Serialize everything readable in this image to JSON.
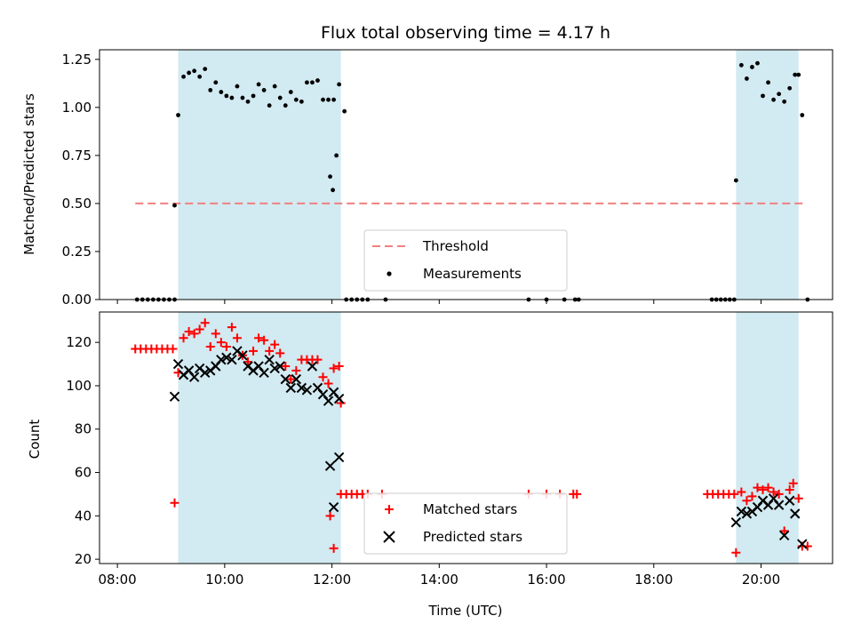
{
  "chart_data": [
    {
      "type": "scatter",
      "title": "Flux total observing time = 4.17 h",
      "ylabel": "Matched/Predicted stars",
      "xlabel": "",
      "xlim": [
        "07:40",
        "21:20"
      ],
      "ylim": [
        0,
        1.3
      ],
      "yticks": [
        "0.00",
        "0.25",
        "0.50",
        "0.75",
        "1.00",
        "1.25"
      ],
      "legend": {
        "placement": "lower-center",
        "entries": [
          "Threshold",
          "Measurements"
        ]
      },
      "highlight_intervals": [
        [
          "09:08",
          "12:10"
        ],
        [
          "19:32",
          "20:42"
        ]
      ],
      "highlight_color": "#add8e6",
      "threshold": {
        "name": "Threshold",
        "y": 0.5,
        "x_range": [
          "08:20",
          "20:50"
        ],
        "color": "#f08080"
      },
      "series": [
        {
          "name": "Measurements",
          "color": "#000000",
          "points": [
            [
              "08:22",
              0
            ],
            [
              "08:28",
              0
            ],
            [
              "08:34",
              0
            ],
            [
              "08:40",
              0
            ],
            [
              "08:46",
              0
            ],
            [
              "08:52",
              0
            ],
            [
              "08:58",
              0
            ],
            [
              "09:04",
              0
            ],
            [
              "09:04",
              0.49
            ],
            [
              "09:08",
              0.96
            ],
            [
              "09:14",
              1.16
            ],
            [
              "09:20",
              1.18
            ],
            [
              "09:26",
              1.19
            ],
            [
              "09:32",
              1.16
            ],
            [
              "09:38",
              1.2
            ],
            [
              "09:44",
              1.09
            ],
            [
              "09:50",
              1.13
            ],
            [
              "09:56",
              1.08
            ],
            [
              "10:02",
              1.06
            ],
            [
              "10:08",
              1.05
            ],
            [
              "10:14",
              1.11
            ],
            [
              "10:20",
              1.05
            ],
            [
              "10:26",
              1.03
            ],
            [
              "10:32",
              1.06
            ],
            [
              "10:38",
              1.12
            ],
            [
              "10:44",
              1.09
            ],
            [
              "10:50",
              1.01
            ],
            [
              "10:56",
              1.11
            ],
            [
              "11:02",
              1.05
            ],
            [
              "11:08",
              1.01
            ],
            [
              "11:14",
              1.08
            ],
            [
              "11:20",
              1.04
            ],
            [
              "11:26",
              1.03
            ],
            [
              "11:32",
              1.13
            ],
            [
              "11:38",
              1.13
            ],
            [
              "11:44",
              1.14
            ],
            [
              "11:50",
              1.04
            ],
            [
              "11:56",
              1.04
            ],
            [
              "12:02",
              1.04
            ],
            [
              "12:08",
              1.12
            ],
            [
              "12:14",
              0.98
            ],
            [
              "11:58",
              0.64
            ],
            [
              "12:01",
              0.57
            ],
            [
              "12:05",
              0.75
            ],
            [
              "12:16",
              0
            ],
            [
              "12:22",
              0
            ],
            [
              "12:28",
              0
            ],
            [
              "12:34",
              0
            ],
            [
              "12:40",
              0
            ],
            [
              "13:00",
              0
            ],
            [
              "15:40",
              0
            ],
            [
              "16:00",
              0
            ],
            [
              "16:20",
              0
            ],
            [
              "16:32",
              0
            ],
            [
              "16:36",
              0
            ],
            [
              "19:05",
              0
            ],
            [
              "19:10",
              0
            ],
            [
              "19:15",
              0
            ],
            [
              "19:20",
              0
            ],
            [
              "19:25",
              0
            ],
            [
              "19:30",
              0
            ],
            [
              "19:32",
              0.62
            ],
            [
              "19:38",
              1.22
            ],
            [
              "19:44",
              1.15
            ],
            [
              "19:50",
              1.21
            ],
            [
              "19:56",
              1.23
            ],
            [
              "20:02",
              1.06
            ],
            [
              "20:08",
              1.13
            ],
            [
              "20:14",
              1.04
            ],
            [
              "20:20",
              1.07
            ],
            [
              "20:26",
              1.03
            ],
            [
              "20:32",
              1.1
            ],
            [
              "20:38",
              1.17
            ],
            [
              "20:42",
              1.17
            ],
            [
              "20:46",
              0.96
            ],
            [
              "20:52",
              0
            ]
          ]
        }
      ]
    },
    {
      "type": "scatter",
      "title": "",
      "xlabel": "Time (UTC)",
      "ylabel": "Count",
      "xlim": [
        "07:40",
        "21:20"
      ],
      "ylim": [
        18,
        134
      ],
      "yticks": [
        "20",
        "40",
        "60",
        "80",
        "100",
        "120"
      ],
      "xticks": [
        "08:00",
        "10:00",
        "12:00",
        "14:00",
        "16:00",
        "18:00",
        "20:00"
      ],
      "legend": {
        "placement": "lower-center",
        "entries": [
          "Matched stars",
          "Predicted stars"
        ]
      },
      "highlight_intervals": [
        [
          "09:08",
          "12:10"
        ],
        [
          "19:32",
          "20:42"
        ]
      ],
      "highlight_color": "#add8e6",
      "series": [
        {
          "name": "Matched stars",
          "marker": "plus",
          "color": "#ff0000",
          "points": [
            [
              "08:20",
              117
            ],
            [
              "08:26",
              117
            ],
            [
              "08:32",
              117
            ],
            [
              "08:38",
              117
            ],
            [
              "08:44",
              117
            ],
            [
              "08:50",
              117
            ],
            [
              "08:56",
              117
            ],
            [
              "09:02",
              117
            ],
            [
              "09:04",
              46
            ],
            [
              "09:08",
              106
            ],
            [
              "09:14",
              122
            ],
            [
              "09:20",
              125
            ],
            [
              "09:26",
              124
            ],
            [
              "09:32",
              126
            ],
            [
              "09:38",
              129
            ],
            [
              "09:44",
              118
            ],
            [
              "09:50",
              124
            ],
            [
              "09:56",
              120
            ],
            [
              "10:02",
              118
            ],
            [
              "10:08",
              127
            ],
            [
              "10:14",
              122
            ],
            [
              "10:20",
              114
            ],
            [
              "10:26",
              111
            ],
            [
              "10:32",
              116
            ],
            [
              "10:38",
              122
            ],
            [
              "10:44",
              121
            ],
            [
              "10:50",
              116
            ],
            [
              "10:56",
              119
            ],
            [
              "11:02",
              115
            ],
            [
              "11:08",
              109
            ],
            [
              "11:14",
              103
            ],
            [
              "11:20",
              107
            ],
            [
              "11:26",
              112
            ],
            [
              "11:32",
              112
            ],
            [
              "11:38",
              112
            ],
            [
              "11:44",
              112
            ],
            [
              "11:50",
              104
            ],
            [
              "11:56",
              101
            ],
            [
              "12:02",
              108
            ],
            [
              "12:08",
              109
            ],
            [
              "12:10",
              92
            ],
            [
              "11:58",
              40
            ],
            [
              "12:02",
              25
            ],
            [
              "12:10",
              50
            ],
            [
              "12:16",
              50
            ],
            [
              "12:22",
              50
            ],
            [
              "12:28",
              50
            ],
            [
              "12:34",
              50
            ],
            [
              "12:40",
              50
            ],
            [
              "12:56",
              50
            ],
            [
              "15:40",
              50
            ],
            [
              "16:00",
              50
            ],
            [
              "16:15",
              50
            ],
            [
              "16:30",
              50
            ],
            [
              "16:34",
              50
            ],
            [
              "19:00",
              50
            ],
            [
              "19:06",
              50
            ],
            [
              "19:12",
              50
            ],
            [
              "19:18",
              50
            ],
            [
              "19:24",
              50
            ],
            [
              "19:30",
              50
            ],
            [
              "19:32",
              23
            ],
            [
              "19:38",
              51
            ],
            [
              "19:44",
              47
            ],
            [
              "19:50",
              49
            ],
            [
              "19:56",
              53
            ],
            [
              "20:02",
              52
            ],
            [
              "20:08",
              53
            ],
            [
              "20:14",
              51
            ],
            [
              "20:20",
              50
            ],
            [
              "20:26",
              33
            ],
            [
              "20:32",
              52
            ],
            [
              "20:36",
              55
            ],
            [
              "20:42",
              48
            ],
            [
              "20:46",
              26
            ],
            [
              "20:52",
              26
            ]
          ]
        },
        {
          "name": "Predicted stars",
          "marker": "x",
          "color": "#000000",
          "points": [
            [
              "09:04",
              95
            ],
            [
              "09:08",
              110
            ],
            [
              "09:14",
              105
            ],
            [
              "09:20",
              107
            ],
            [
              "09:26",
              104
            ],
            [
              "09:32",
              108
            ],
            [
              "09:38",
              106
            ],
            [
              "09:44",
              107
            ],
            [
              "09:50",
              109
            ],
            [
              "09:56",
              112
            ],
            [
              "10:02",
              113
            ],
            [
              "10:08",
              112
            ],
            [
              "10:14",
              116
            ],
            [
              "10:20",
              114
            ],
            [
              "10:26",
              109
            ],
            [
              "10:32",
              107
            ],
            [
              "10:38",
              109
            ],
            [
              "10:44",
              106
            ],
            [
              "10:50",
              112
            ],
            [
              "10:56",
              108
            ],
            [
              "11:02",
              109
            ],
            [
              "11:08",
              103
            ],
            [
              "11:14",
              99
            ],
            [
              "11:20",
              103
            ],
            [
              "11:26",
              99
            ],
            [
              "11:32",
              98
            ],
            [
              "11:38",
              109
            ],
            [
              "11:44",
              99
            ],
            [
              "11:50",
              96
            ],
            [
              "11:56",
              93
            ],
            [
              "12:02",
              97
            ],
            [
              "12:08",
              94
            ],
            [
              "11:58",
              63
            ],
            [
              "12:02",
              44
            ],
            [
              "12:08",
              67
            ],
            [
              "19:32",
              37
            ],
            [
              "19:38",
              42
            ],
            [
              "19:44",
              41
            ],
            [
              "19:50",
              42
            ],
            [
              "19:56",
              44
            ],
            [
              "20:02",
              47
            ],
            [
              "20:08",
              45
            ],
            [
              "20:14",
              48
            ],
            [
              "20:20",
              45
            ],
            [
              "20:26",
              31
            ],
            [
              "20:32",
              47
            ],
            [
              "20:38",
              41
            ],
            [
              "20:46",
              27
            ]
          ]
        }
      ]
    }
  ]
}
